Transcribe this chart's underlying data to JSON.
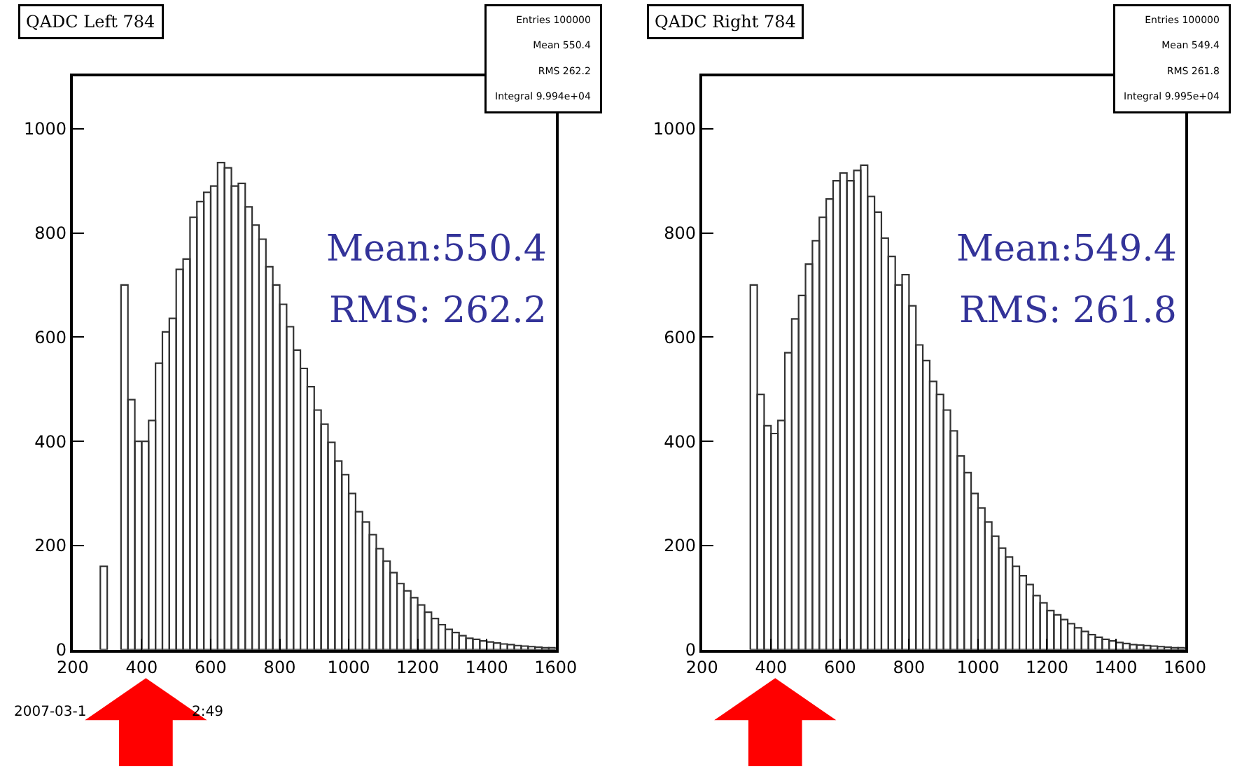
{
  "chart_data": [
    {
      "type": "histogram",
      "title": "QADC Left 784",
      "color": "#333333",
      "bins": [
        280,
        300,
        320,
        340,
        360,
        380,
        400,
        420,
        440,
        460,
        480,
        500,
        520,
        540,
        560,
        580,
        600,
        620,
        640,
        660,
        680,
        700,
        720,
        740,
        760,
        780,
        800,
        820,
        840,
        860,
        880,
        900,
        920,
        940,
        960,
        980,
        1000,
        1020,
        1040,
        1060,
        1080,
        1100,
        1120,
        1140,
        1160,
        1180,
        1200,
        1220,
        1240,
        1260,
        1280,
        1300,
        1320,
        1340,
        1360,
        1380,
        1400,
        1420,
        1440,
        1460,
        1480,
        1500,
        1520,
        1540,
        1560,
        1580,
        1600
      ],
      "values": [
        160,
        null,
        null,
        700,
        480,
        400,
        400,
        440,
        550,
        610,
        636,
        730,
        750,
        830,
        860,
        878,
        890,
        935,
        925,
        890,
        895,
        850,
        815,
        788,
        735,
        700,
        663,
        620,
        575,
        540,
        505,
        460,
        433,
        398,
        362,
        336,
        300,
        265,
        245,
        221,
        194,
        170,
        148,
        127,
        113,
        100,
        86,
        72,
        60,
        48,
        39,
        33,
        27,
        22,
        20,
        17,
        15,
        13,
        11,
        10,
        8,
        7,
        6,
        5,
        4,
        4
      ],
      "xlim": [
        200,
        1600
      ],
      "ylim": [
        0,
        1100
      ],
      "xticks": [
        200,
        400,
        600,
        800,
        1000,
        1200,
        1400,
        1600
      ],
      "yticks": [
        0,
        200,
        400,
        600,
        800,
        1000
      ],
      "annotations": [
        "Entries 100000",
        "Mean 550.4",
        "RMS 262.2",
        "Integral 9.994e+04",
        "Mean:550.4",
        "RMS: 262.2",
        "2007-03-1",
        "2:49"
      ]
    },
    {
      "type": "histogram",
      "title": "QADC Right 784",
      "color": "#333333",
      "bins": [
        300,
        320,
        340,
        360,
        380,
        400,
        420,
        440,
        460,
        480,
        500,
        520,
        540,
        560,
        580,
        600,
        620,
        640,
        660,
        680,
        700,
        720,
        740,
        760,
        780,
        800,
        820,
        840,
        860,
        880,
        900,
        920,
        940,
        960,
        980,
        1000,
        1020,
        1040,
        1060,
        1080,
        1100,
        1120,
        1140,
        1160,
        1180,
        1200,
        1220,
        1240,
        1260,
        1280,
        1300,
        1320,
        1340,
        1360,
        1380,
        1400,
        1420,
        1440,
        1460,
        1480,
        1500,
        1520,
        1540,
        1560,
        1580,
        1600
      ],
      "values": [
        null,
        null,
        700,
        490,
        430,
        415,
        440,
        570,
        635,
        680,
        740,
        785,
        830,
        865,
        900,
        915,
        900,
        920,
        930,
        870,
        840,
        790,
        755,
        700,
        720,
        660,
        585,
        555,
        515,
        490,
        460,
        420,
        372,
        340,
        300,
        272,
        245,
        218,
        195,
        178,
        160,
        142,
        125,
        104,
        90,
        75,
        67,
        58,
        50,
        42,
        35,
        29,
        24,
        20,
        17,
        14,
        12,
        10,
        9,
        8,
        7,
        6,
        5,
        4,
        4
      ],
      "xlim": [
        200,
        1600
      ],
      "ylim": [
        0,
        1100
      ],
      "xticks": [
        200,
        400,
        600,
        800,
        1000,
        1200,
        1400,
        1600
      ],
      "yticks": [
        0,
        200,
        400,
        600,
        800,
        1000
      ],
      "annotations": [
        "Entries 100000",
        "Mean 549.4",
        "RMS 261.8",
        "Integral 9.995e+04",
        "Mean:549.4",
        "RMS: 261.8"
      ]
    }
  ]
}
